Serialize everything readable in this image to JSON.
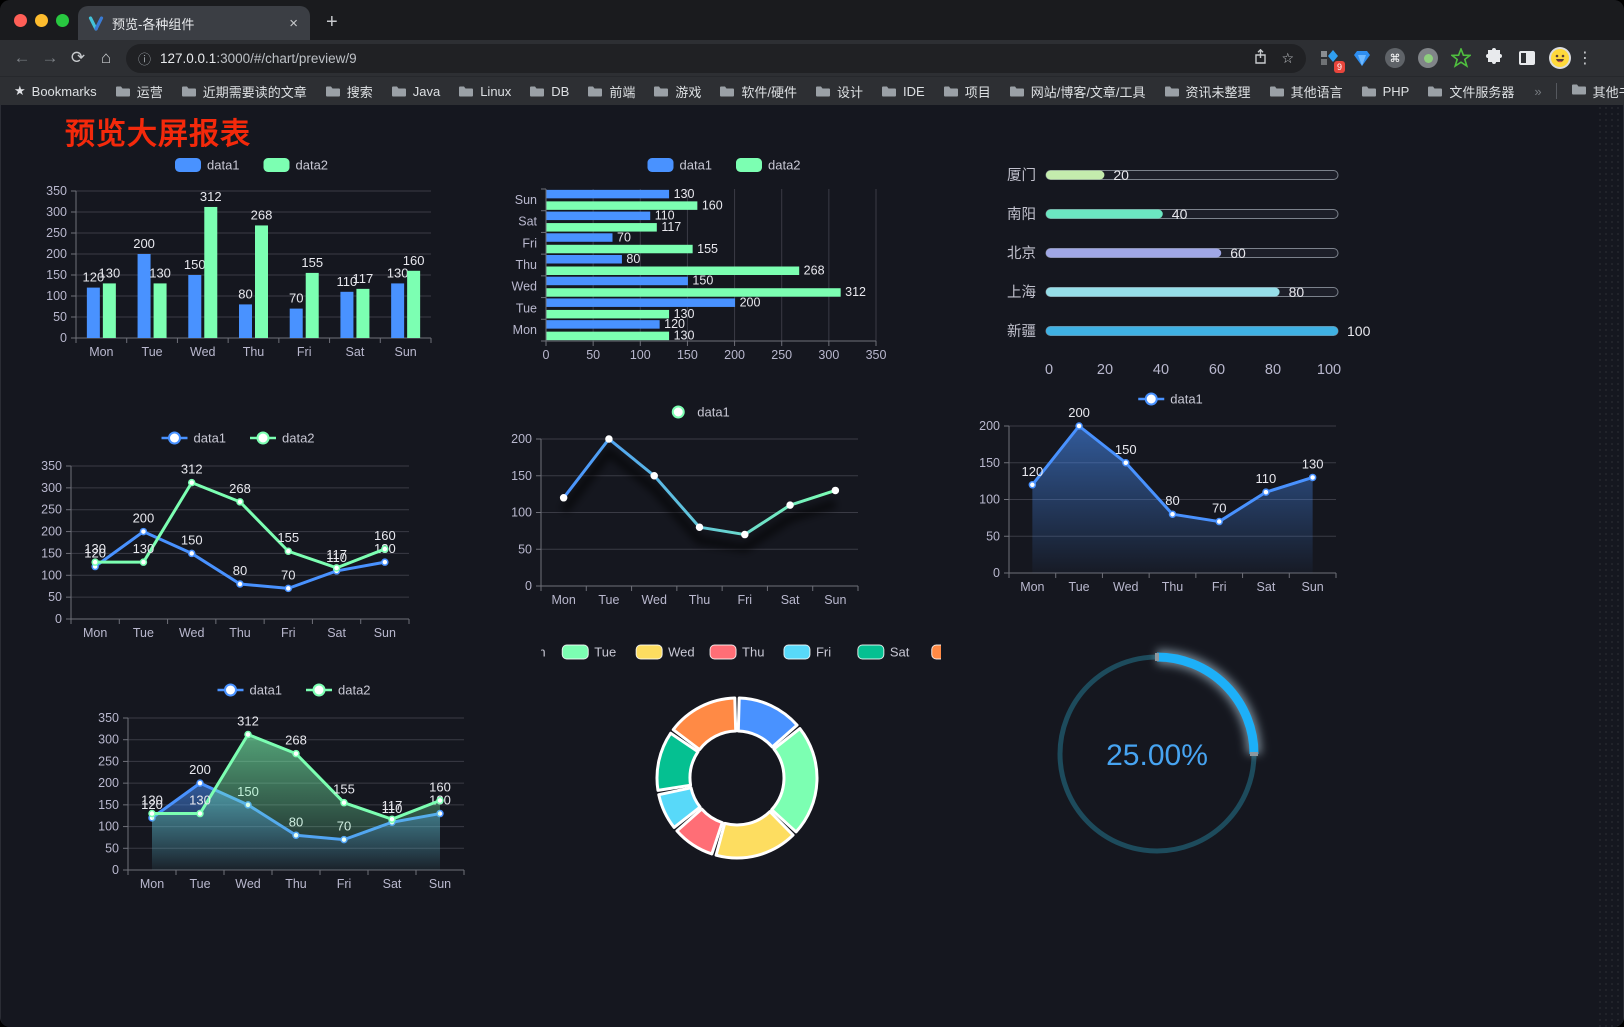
{
  "browser": {
    "tab": {
      "title": "预览-各种组件"
    },
    "icons": {
      "back": "←",
      "forward": "→",
      "reload": "⟳",
      "home": "⌂",
      "info": "ⓘ",
      "star": "☆",
      "close": "×",
      "plus": "+",
      "menu": "⋮",
      "overflow": "»",
      "bookmark_star": "★",
      "cmd": "⌘"
    },
    "url_host": "127.0.0.1",
    "url_rest": ":3000/#/chart/preview/9",
    "bookmarks_label": "Bookmarks",
    "bookmarks": [
      "运营",
      "近期需要读的文章",
      "搜索",
      "Java",
      "Linux",
      "DB",
      "前端",
      "游戏",
      "软件/硬件",
      "设计",
      "IDE",
      "项目",
      "网站/博客/文章/工具",
      "资讯未整理",
      "其他语言",
      "PHP",
      "文件服务器"
    ],
    "other_bookmarks": "其他书签",
    "extension_badge": "9"
  },
  "page": {
    "title": "预览大屏报表"
  },
  "palette": {
    "blue": "#4992ff",
    "green": "#7cffb2",
    "yellow": "#fddd60",
    "red": "#ff6e76",
    "lightblue": "#58d9f9",
    "teal": "#05c091",
    "orange": "#ff8a45"
  },
  "chart_data": [
    {
      "id": "c1",
      "type": "bar",
      "categories": [
        "Mon",
        "Tue",
        "Wed",
        "Thu",
        "Fri",
        "Sat",
        "Sun"
      ],
      "series": [
        {
          "name": "data1",
          "color": "#4992ff",
          "values": [
            120,
            200,
            150,
            80,
            70,
            110,
            130
          ]
        },
        {
          "name": "data2",
          "color": "#7cffb2",
          "values": [
            130,
            130,
            312,
            268,
            155,
            117,
            160
          ]
        }
      ],
      "ylim": [
        0,
        350
      ],
      "ystep": 50,
      "legend_position": "top",
      "grid": true
    },
    {
      "id": "c2",
      "type": "bar-horizontal",
      "categories": [
        "Mon",
        "Tue",
        "Wed",
        "Thu",
        "Fri",
        "Sat",
        "Sun"
      ],
      "series": [
        {
          "name": "data1",
          "color": "#4992ff",
          "values": [
            120,
            200,
            150,
            80,
            70,
            110,
            130
          ]
        },
        {
          "name": "data2",
          "color": "#7cffb2",
          "values": [
            130,
            130,
            312,
            268,
            155,
            117,
            160
          ]
        }
      ],
      "xlim": [
        0,
        350
      ],
      "xstep": 50,
      "legend_position": "top",
      "grid": true
    },
    {
      "id": "c3",
      "type": "bar-horizontal-progress",
      "categories": [
        "厦门",
        "南阳",
        "北京",
        "上海",
        "新疆"
      ],
      "values": [
        20,
        40,
        60,
        80,
        100
      ],
      "colors": [
        "#c4ebad",
        "#6be6c1",
        "#a0a7e6",
        "#96dee8",
        "#3fb1e3"
      ],
      "xlim": [
        0,
        100
      ],
      "xticks": [
        0,
        20,
        40,
        60,
        80,
        100
      ]
    },
    {
      "id": "c4",
      "type": "line",
      "categories": [
        "Mon",
        "Tue",
        "Wed",
        "Thu",
        "Fri",
        "Sat",
        "Sun"
      ],
      "series": [
        {
          "name": "data1",
          "color": "#4992ff",
          "values": [
            120,
            200,
            150,
            80,
            70,
            110,
            130
          ]
        },
        {
          "name": "data2",
          "color": "#7cffb2",
          "values": [
            130,
            130,
            312,
            268,
            155,
            117,
            160
          ]
        }
      ],
      "ylim": [
        0,
        350
      ],
      "ystep": 50,
      "labels": true,
      "legend_position": "top",
      "grid": true
    },
    {
      "id": "c5",
      "type": "line",
      "categories": [
        "Mon",
        "Tue",
        "Wed",
        "Thu",
        "Fri",
        "Sat",
        "Sun"
      ],
      "series": [
        {
          "name": "data1",
          "gradient": [
            "#4992ff",
            "#7cffb2"
          ],
          "values": [
            120,
            200,
            150,
            80,
            70,
            110,
            130
          ]
        }
      ],
      "ylim": [
        0,
        200
      ],
      "ystep": 50,
      "labels": false,
      "shadow": true,
      "legend_position": "top",
      "grid": true
    },
    {
      "id": "c6",
      "type": "area",
      "categories": [
        "Mon",
        "Tue",
        "Wed",
        "Thu",
        "Fri",
        "Sat",
        "Sun"
      ],
      "series": [
        {
          "name": "data1",
          "color": "#4992ff",
          "values": [
            120,
            200,
            150,
            80,
            70,
            110,
            130
          ]
        }
      ],
      "ylim": [
        0,
        200
      ],
      "ystep": 50,
      "labels": true,
      "legend_position": "top",
      "grid": true
    },
    {
      "id": "c7",
      "type": "area",
      "categories": [
        "Mon",
        "Tue",
        "Wed",
        "Thu",
        "Fri",
        "Sat",
        "Sun"
      ],
      "series": [
        {
          "name": "data1",
          "color": "#4992ff",
          "values": [
            120,
            200,
            150,
            80,
            70,
            110,
            130
          ]
        },
        {
          "name": "data2",
          "color": "#7cffb2",
          "values": [
            130,
            130,
            312,
            268,
            155,
            117,
            160
          ]
        }
      ],
      "ylim": [
        0,
        350
      ],
      "ystep": 50,
      "labels": true,
      "legend_position": "top",
      "grid": true
    },
    {
      "id": "c8",
      "type": "pie",
      "shape": "donut",
      "labels": [
        "Mon",
        "Tue",
        "Wed",
        "Thu",
        "Fri",
        "Sat",
        "Sun"
      ],
      "values": [
        120,
        200,
        150,
        80,
        70,
        110,
        130
      ],
      "colors": [
        "#4992ff",
        "#7cffb2",
        "#fddd60",
        "#ff6e76",
        "#58d9f9",
        "#05c091",
        "#ff8a45"
      ],
      "legend_position": "top"
    },
    {
      "id": "c9",
      "type": "gauge",
      "value": 25,
      "label": "25.00%",
      "color": "#1db0f8",
      "track_color": "#1d4b5c",
      "text_color": "#47a4f1"
    }
  ]
}
